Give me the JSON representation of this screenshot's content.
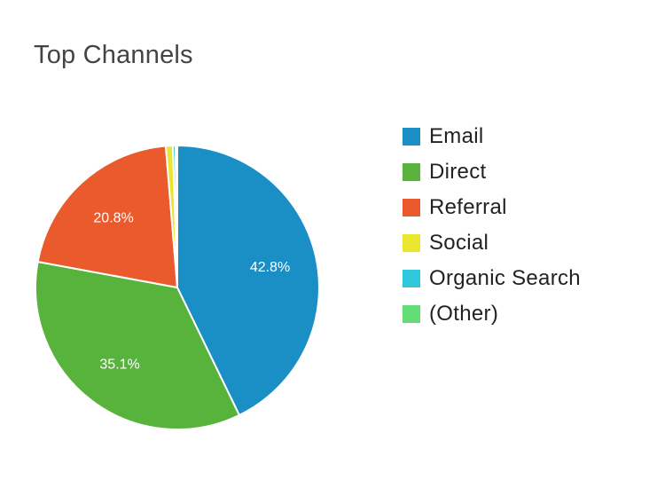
{
  "chart_data": {
    "type": "pie",
    "title": "Top Channels",
    "categories": [
      "Email",
      "Direct",
      "Referral",
      "Social",
      "Organic Search",
      "(Other)"
    ],
    "values": [
      42.8,
      35.1,
      20.8,
      0.8,
      0.3,
      0.2
    ],
    "colors": [
      "#1a8fc6",
      "#57b33b",
      "#eb5a2c",
      "#ebe52e",
      "#30c6dc",
      "#63dd77"
    ],
    "slice_labels": [
      "42.8%",
      "35.1%",
      "20.8%",
      "",
      "",
      ""
    ],
    "legend": "right"
  }
}
